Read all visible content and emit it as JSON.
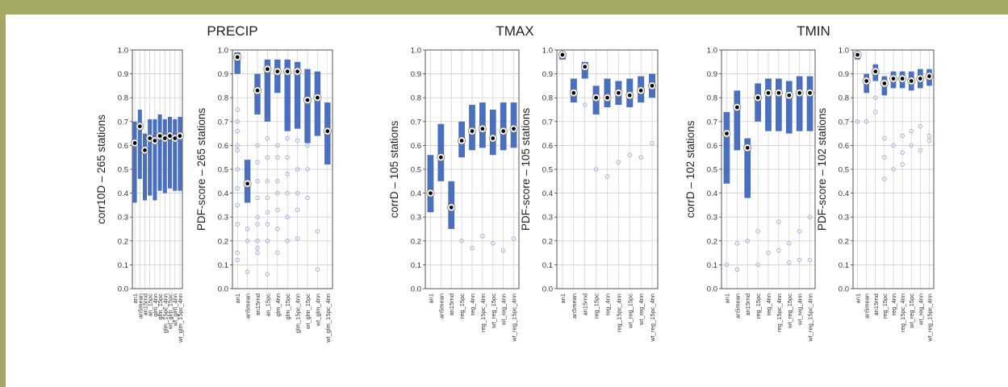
{
  "colors": {
    "frame": "#a5a865",
    "box": "#4a6fbf",
    "outlier": "#9aaad8",
    "grid": "#c8c8c8",
    "axis": "#444444"
  },
  "chart_data": [
    {
      "type": "box",
      "group_title": "PRECIP",
      "ylabel": "corr10D – 265 stations",
      "ylim": [
        0,
        1
      ],
      "yticks": [
        "0.0",
        "0.1",
        "0.2",
        "0.3",
        "0.4",
        "0.5",
        "0.6",
        "0.7",
        "0.8",
        "0.9",
        "1.0"
      ],
      "categories": [
        "an1",
        "an5mean",
        "an15rnd",
        "an_15pc",
        "glm_4nn",
        "glm_15pc",
        "glm_15pc_4nn",
        "wt_glm_15pc",
        "wt_glm_4nn",
        "wt_glm_15pc_4nn"
      ],
      "boxes": [
        {
          "low": 0.36,
          "high": 0.7,
          "median": 0.61
        },
        {
          "low": 0.46,
          "high": 0.75,
          "median": 0.68
        },
        {
          "low": 0.37,
          "high": 0.65,
          "median": 0.58
        },
        {
          "low": 0.39,
          "high": 0.71,
          "median": 0.63
        },
        {
          "low": 0.37,
          "high": 0.71,
          "median": 0.62
        },
        {
          "low": 0.41,
          "high": 0.73,
          "median": 0.64
        },
        {
          "low": 0.4,
          "high": 0.71,
          "median": 0.63
        },
        {
          "low": 0.42,
          "high": 0.72,
          "median": 0.64
        },
        {
          "low": 0.41,
          "high": 0.71,
          "median": 0.63
        },
        {
          "low": 0.41,
          "high": 0.72,
          "median": 0.64
        }
      ],
      "outliers": []
    },
    {
      "type": "box",
      "group_title": "",
      "ylabel": "PDF-score – 265 stations",
      "ylim": [
        0,
        1
      ],
      "yticks": [
        "0.0",
        "0.1",
        "0.2",
        "0.3",
        "0.4",
        "0.5",
        "0.6",
        "0.7",
        "0.8",
        "0.9",
        "1.0"
      ],
      "categories": [
        "an1",
        "an5mean",
        "an15rnd",
        "an_15pc",
        "glm_4nn",
        "glm_15pc",
        "glm_15pc_4nn",
        "wt_glm_15pc",
        "wt_glm_4nn",
        "wt_glm_15pc_4nn"
      ],
      "boxes": [
        {
          "low": 0.9,
          "high": 0.99,
          "median": 0.97
        },
        {
          "low": 0.36,
          "high": 0.54,
          "median": 0.44
        },
        {
          "low": 0.73,
          "high": 0.9,
          "median": 0.83
        },
        {
          "low": 0.7,
          "high": 0.96,
          "median": 0.92
        },
        {
          "low": 0.82,
          "high": 0.96,
          "median": 0.91
        },
        {
          "low": 0.66,
          "high": 0.96,
          "median": 0.91
        },
        {
          "low": 0.67,
          "high": 0.95,
          "median": 0.91
        },
        {
          "low": 0.61,
          "high": 0.92,
          "median": 0.79
        },
        {
          "low": 0.64,
          "high": 0.91,
          "median": 0.8
        },
        {
          "low": 0.52,
          "high": 0.78,
          "median": 0.66
        }
      ],
      "outliers": [
        {
          "i": 0,
          "values": [
            0.75,
            0.7,
            0.66,
            0.6,
            0.58,
            0.5,
            0.42,
            0.35,
            0.27,
            0.15,
            0.12
          ]
        },
        {
          "i": 1,
          "values": [
            0.25,
            0.2,
            0.07
          ]
        },
        {
          "i": 2,
          "values": [
            0.6,
            0.53,
            0.45,
            0.38,
            0.3,
            0.27,
            0.2,
            0.17,
            0.15
          ]
        },
        {
          "i": 3,
          "values": [
            0.63,
            0.55,
            0.45,
            0.38,
            0.32,
            0.27,
            0.2,
            0.06
          ]
        },
        {
          "i": 4,
          "values": [
            0.6,
            0.55,
            0.45,
            0.4,
            0.33,
            0.25,
            0.15
          ]
        },
        {
          "i": 5,
          "values": [
            0.63,
            0.55,
            0.48,
            0.4,
            0.3,
            0.2
          ]
        },
        {
          "i": 6,
          "values": [
            0.62,
            0.5,
            0.4,
            0.33,
            0.21
          ]
        },
        {
          "i": 7,
          "values": [
            0.6,
            0.5,
            0.38
          ]
        },
        {
          "i": 8,
          "values": [
            0.24,
            0.08
          ]
        },
        {
          "i": 9,
          "values": []
        }
      ]
    },
    {
      "type": "box",
      "group_title": "TMAX",
      "ylabel": "corrD – 105 stations",
      "ylim": [
        0,
        1
      ],
      "yticks": [
        "0.0",
        "0.1",
        "0.2",
        "0.3",
        "0.4",
        "0.5",
        "0.6",
        "0.7",
        "0.8",
        "0.9",
        "1.0"
      ],
      "categories": [
        "an1",
        "an5mean",
        "an15rnd",
        "reg_15pc",
        "reg_4nn",
        "reg_15pc_4nn",
        "wt_reg_15pc",
        "wt_reg_4nn",
        "wt_reg_15pc_4nn"
      ],
      "boxes": [
        {
          "low": 0.32,
          "high": 0.56,
          "median": 0.4
        },
        {
          "low": 0.45,
          "high": 0.69,
          "median": 0.55
        },
        {
          "low": 0.25,
          "high": 0.45,
          "median": 0.34
        },
        {
          "low": 0.55,
          "high": 0.7,
          "median": 0.62
        },
        {
          "low": 0.58,
          "high": 0.77,
          "median": 0.66
        },
        {
          "low": 0.59,
          "high": 0.78,
          "median": 0.67
        },
        {
          "low": 0.56,
          "high": 0.75,
          "median": 0.63
        },
        {
          "low": 0.58,
          "high": 0.78,
          "median": 0.66
        },
        {
          "low": 0.59,
          "high": 0.78,
          "median": 0.67
        }
      ],
      "outliers": [
        {
          "i": 3,
          "values": [
            0.2
          ]
        },
        {
          "i": 4,
          "values": [
            0.17
          ]
        },
        {
          "i": 5,
          "values": [
            0.22
          ]
        },
        {
          "i": 6,
          "values": [
            0.19
          ]
        },
        {
          "i": 7,
          "values": [
            0.16
          ]
        },
        {
          "i": 8,
          "values": [
            0.21
          ]
        }
      ]
    },
    {
      "type": "box",
      "group_title": "",
      "ylabel": "PDF-score – 105 stations",
      "ylim": [
        0,
        1
      ],
      "yticks": [
        "0.0",
        "0.1",
        "0.2",
        "0.3",
        "0.4",
        "0.5",
        "0.6",
        "0.7",
        "0.8",
        "0.9",
        "1.0"
      ],
      "categories": [
        "an1",
        "an5mean",
        "an15rnd",
        "reg_15pc",
        "reg_4nn",
        "reg_15pc_4nn",
        "wt_reg_15pc",
        "wt_reg_4nn",
        "wt_reg_15pc_4nn"
      ],
      "boxes": [
        {
          "low": 0.96,
          "high": 0.99,
          "median": 0.98
        },
        {
          "low": 0.78,
          "high": 0.88,
          "median": 0.82
        },
        {
          "low": 0.88,
          "high": 0.95,
          "median": 0.93
        },
        {
          "low": 0.73,
          "high": 0.85,
          "median": 0.8
        },
        {
          "low": 0.76,
          "high": 0.88,
          "median": 0.8
        },
        {
          "low": 0.77,
          "high": 0.87,
          "median": 0.82
        },
        {
          "low": 0.76,
          "high": 0.88,
          "median": 0.81
        },
        {
          "low": 0.78,
          "high": 0.89,
          "median": 0.83
        },
        {
          "low": 0.8,
          "high": 0.9,
          "median": 0.85
        }
      ],
      "outliers": [
        {
          "i": 2,
          "values": [
            0.77
          ]
        },
        {
          "i": 3,
          "values": [
            0.5
          ]
        },
        {
          "i": 4,
          "values": [
            0.47
          ]
        },
        {
          "i": 5,
          "values": [
            0.53
          ]
        },
        {
          "i": 6,
          "values": [
            0.56
          ]
        },
        {
          "i": 7,
          "values": [
            0.55
          ]
        },
        {
          "i": 8,
          "values": [
            0.61
          ]
        }
      ]
    },
    {
      "type": "box",
      "group_title": "TMIN",
      "ylabel": "corrD – 102 stations",
      "ylim": [
        0,
        1
      ],
      "yticks": [
        "0.0",
        "0.1",
        "0.2",
        "0.3",
        "0.4",
        "0.5",
        "0.6",
        "0.7",
        "0.8",
        "0.9",
        "1.0"
      ],
      "categories": [
        "an1",
        "an5mean",
        "an15rnd",
        "reg_15pc",
        "reg_4nn",
        "reg_15pc_4nn",
        "wt_reg_15pc",
        "wt_reg_4nn",
        "wt_reg_15pc_4nn"
      ],
      "boxes": [
        {
          "low": 0.44,
          "high": 0.74,
          "median": 0.65
        },
        {
          "low": 0.58,
          "high": 0.83,
          "median": 0.76
        },
        {
          "low": 0.38,
          "high": 0.63,
          "median": 0.59
        },
        {
          "low": 0.7,
          "high": 0.86,
          "median": 0.8
        },
        {
          "low": 0.66,
          "high": 0.88,
          "median": 0.82
        },
        {
          "low": 0.66,
          "high": 0.88,
          "median": 0.82
        },
        {
          "low": 0.65,
          "high": 0.87,
          "median": 0.81
        },
        {
          "low": 0.66,
          "high": 0.89,
          "median": 0.82
        },
        {
          "low": 0.66,
          "high": 0.89,
          "median": 0.82
        }
      ],
      "outliers": [
        {
          "i": 0,
          "values": [
            0.1
          ]
        },
        {
          "i": 1,
          "values": [
            0.19,
            0.08
          ]
        },
        {
          "i": 2,
          "values": [
            0.2
          ]
        },
        {
          "i": 3,
          "values": [
            0.24,
            0.1
          ]
        },
        {
          "i": 4,
          "values": [
            0.15
          ]
        },
        {
          "i": 5,
          "values": [
            0.28,
            0.16
          ]
        },
        {
          "i": 6,
          "values": [
            0.19,
            0.11
          ]
        },
        {
          "i": 7,
          "values": [
            0.24,
            0.12
          ]
        },
        {
          "i": 8,
          "values": [
            0.3,
            0.12
          ]
        }
      ]
    },
    {
      "type": "box",
      "group_title": "",
      "ylabel": "PDF-score – 102 stations",
      "ylim": [
        0,
        1
      ],
      "yticks": [
        "0.0",
        "0.1",
        "0.2",
        "0.3",
        "0.4",
        "0.5",
        "0.6",
        "0.7",
        "0.8",
        "0.9",
        "1.0"
      ],
      "categories": [
        "an1",
        "an5mean",
        "an15rnd",
        "reg_15pc",
        "reg_4nn",
        "reg_15pc_4nn",
        "wt_reg_15pc",
        "wt_reg_4nn",
        "wt_reg_15pc_4nn"
      ],
      "boxes": [
        {
          "low": 0.96,
          "high": 0.99,
          "median": 0.98
        },
        {
          "low": 0.82,
          "high": 0.9,
          "median": 0.87
        },
        {
          "low": 0.87,
          "high": 0.94,
          "median": 0.91
        },
        {
          "low": 0.81,
          "high": 0.89,
          "median": 0.86
        },
        {
          "low": 0.84,
          "high": 0.91,
          "median": 0.88
        },
        {
          "low": 0.84,
          "high": 0.91,
          "median": 0.88
        },
        {
          "low": 0.83,
          "high": 0.91,
          "median": 0.87
        },
        {
          "low": 0.84,
          "high": 0.92,
          "median": 0.88
        },
        {
          "low": 0.85,
          "high": 0.92,
          "median": 0.89
        }
      ],
      "outliers": [
        {
          "i": 0,
          "values": [
            0.7
          ]
        },
        {
          "i": 1,
          "values": [
            0.7
          ]
        },
        {
          "i": 2,
          "values": [
            0.8,
            0.74
          ]
        },
        {
          "i": 3,
          "values": [
            0.63,
            0.55,
            0.46
          ]
        },
        {
          "i": 4,
          "values": [
            0.6,
            0.5
          ]
        },
        {
          "i": 5,
          "values": [
            0.64,
            0.57,
            0.52
          ]
        },
        {
          "i": 6,
          "values": [
            0.66,
            0.6
          ]
        },
        {
          "i": 7,
          "values": [
            0.68,
            0.58
          ]
        },
        {
          "i": 8,
          "values": [
            0.64,
            0.62
          ]
        }
      ]
    }
  ]
}
